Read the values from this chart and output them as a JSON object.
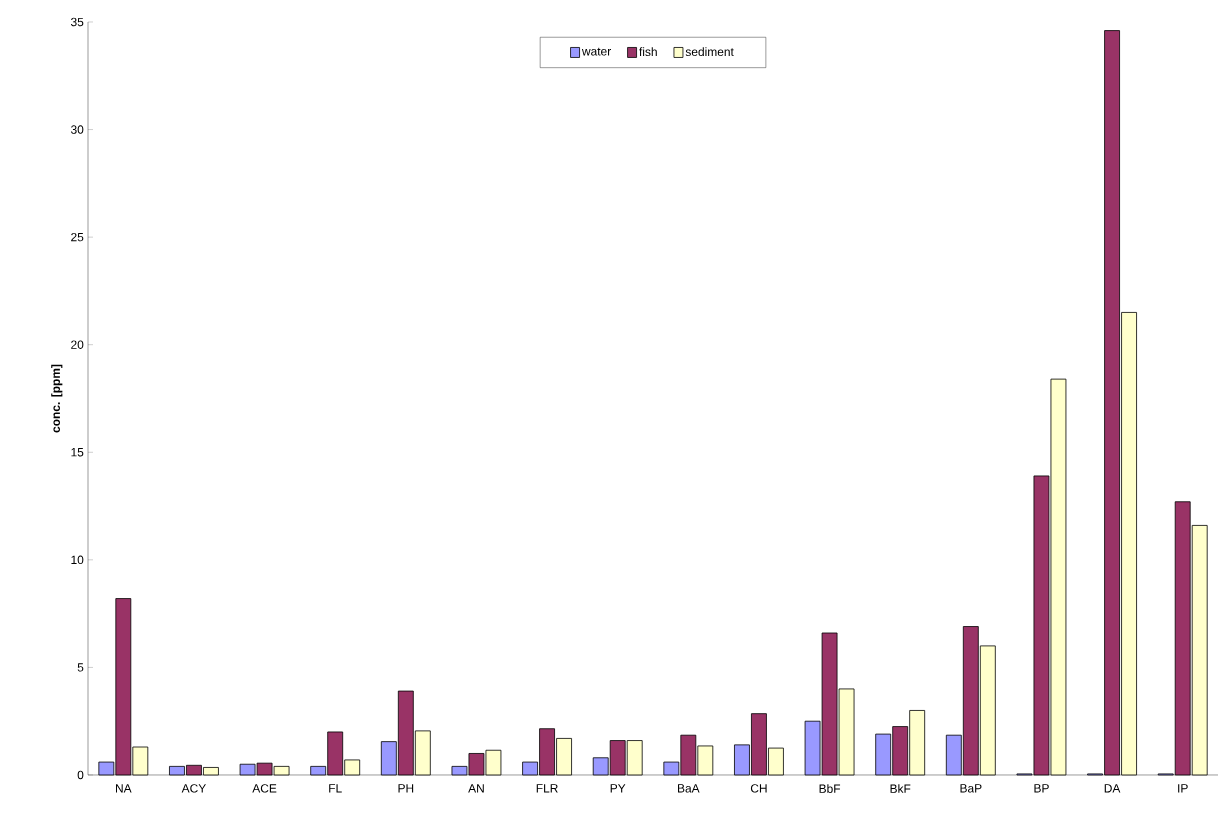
{
  "chart_data": {
    "type": "bar",
    "ylabel": "conc. [ppm]",
    "categories": [
      "NA",
      "ACY",
      "ACE",
      "FL",
      "PH",
      "AN",
      "FLR",
      "PY",
      "BaA",
      "CH",
      "BbF",
      "BkF",
      "BaP",
      "BP",
      "DA",
      "IP"
    ],
    "series": [
      {
        "name": "water",
        "color": "#9999ff",
        "values": [
          0.6,
          0.4,
          0.5,
          0.4,
          1.55,
          0.4,
          0.6,
          0.8,
          0.6,
          1.4,
          2.5,
          1.9,
          1.85,
          0.05,
          0.05,
          0.05
        ]
      },
      {
        "name": "fish",
        "color": "#993366",
        "values": [
          8.2,
          0.45,
          0.55,
          2.0,
          3.9,
          1.0,
          2.15,
          1.6,
          1.85,
          2.85,
          6.6,
          2.25,
          6.9,
          13.9,
          34.6,
          12.7
        ]
      },
      {
        "name": "sediment",
        "color": "#ffffcc",
        "values": [
          1.3,
          0.35,
          0.4,
          0.7,
          2.05,
          1.15,
          1.7,
          1.6,
          1.35,
          1.25,
          4.0,
          3.0,
          6.0,
          18.4,
          21.5,
          11.6
        ]
      }
    ],
    "ylim": [
      0,
      35
    ],
    "yticks": [
      0,
      5,
      10,
      15,
      20,
      25,
      30,
      35
    ],
    "legend": "top",
    "grid": false
  }
}
